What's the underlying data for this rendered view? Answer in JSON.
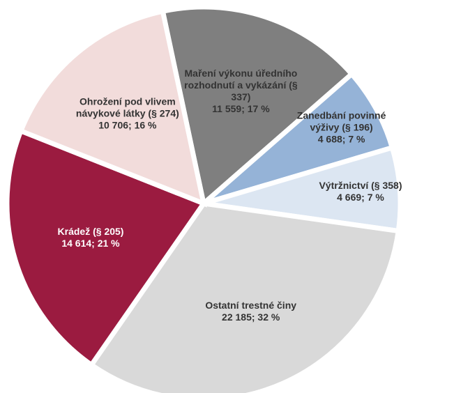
{
  "chart_data": {
    "type": "pie",
    "categories": [
      "Maření výkonu úředního rozhodnutí a vykázání (§ 337)",
      "Zanedbání povinné výživy (§ 196)",
      "Výtržnictví (§ 358)",
      "Ostatní trestné činy",
      "Krádež (§ 205)",
      "Ohrožení pod vlivem návykové látky (§ 274)"
    ],
    "values": [
      11559,
      4688,
      4669,
      22185,
      14614,
      10706
    ],
    "value_labels": [
      "11 559; 17 %",
      "4 688; 7 %",
      "4 669; 7 %",
      "22 185; 32 %",
      "14 614; 21 %",
      "10 706; 16 %"
    ],
    "colors": [
      "#7f7f7f",
      "#95b3d7",
      "#dce6f2",
      "#d9d9d9",
      "#9b1b40",
      "#f2dcdb"
    ]
  }
}
